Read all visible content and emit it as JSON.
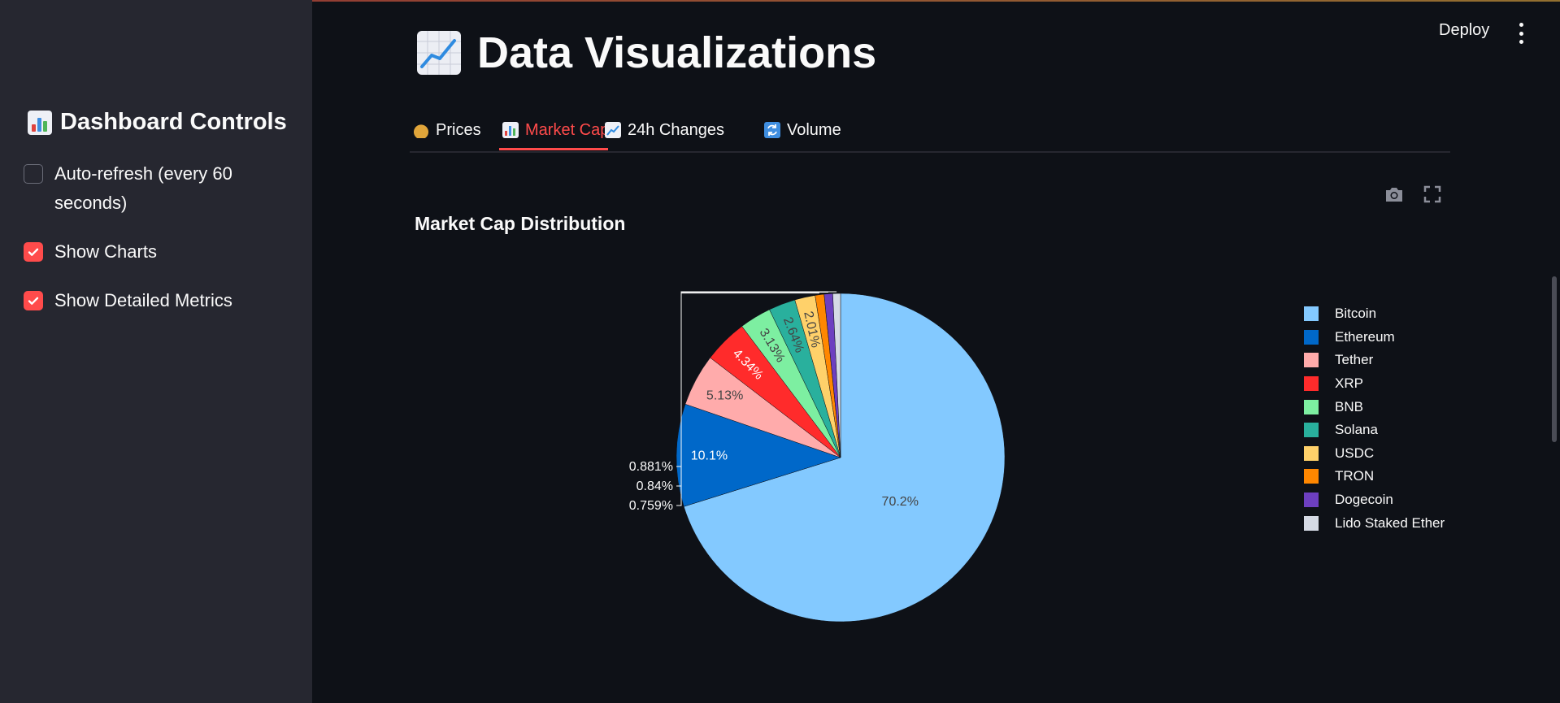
{
  "sidebar": {
    "title": "Dashboard Controls",
    "title_icon": "bar-chart-emoji",
    "controls": [
      {
        "label_line1": "Auto-refresh (every 60",
        "label_line2": "seconds)",
        "checked": false
      },
      {
        "label": "Show Charts",
        "checked": true
      },
      {
        "label": "Show Detailed Metrics",
        "checked": true
      }
    ]
  },
  "header": {
    "deploy_label": "Deploy",
    "menu_icon": "more-vertical-icon"
  },
  "page": {
    "title": "Data Visualizations",
    "title_icon": "chart-increasing-emoji"
  },
  "tabs": [
    {
      "label": "Prices",
      "icon": "money-bag-emoji",
      "active": false
    },
    {
      "label": "Market Cap",
      "icon": "bar-chart-emoji",
      "active": true
    },
    {
      "label": "24h Changes",
      "icon": "chart-increasing-emoji",
      "active": false
    },
    {
      "label": "Volume",
      "icon": "refresh-emoji",
      "active": false
    }
  ],
  "chart_toolbar": {
    "icons": [
      "camera-icon",
      "fullscreen-icon"
    ]
  },
  "chart_data": {
    "type": "pie",
    "title": "Market Cap Distribution",
    "categories": [
      "Bitcoin",
      "Ethereum",
      "Tether",
      "XRP",
      "BNB",
      "Solana",
      "USDC",
      "TRON",
      "Dogecoin",
      "Lido Staked Ether"
    ],
    "values": [
      70.2,
      10.1,
      5.13,
      4.34,
      3.13,
      2.64,
      2.01,
      0.881,
      0.84,
      0.759
    ],
    "labels": [
      "70.2%",
      "10.1%",
      "5.13%",
      "4.34%",
      "3.13%",
      "2.64%",
      "2.01%",
      "0.881%",
      "0.84%",
      "0.759%"
    ],
    "colors": [
      "#83c9ff",
      "#0068c9",
      "#ffabab",
      "#ff2b2b",
      "#7defa1",
      "#29b09d",
      "#ffd16a",
      "#ff8700",
      "#6d3fc0",
      "#d5dae5"
    ],
    "legend": "right"
  },
  "colors": {
    "background": "#0e1117",
    "sidebar": "#262730",
    "accent": "#ff4b4b",
    "text": "#fafafa"
  }
}
